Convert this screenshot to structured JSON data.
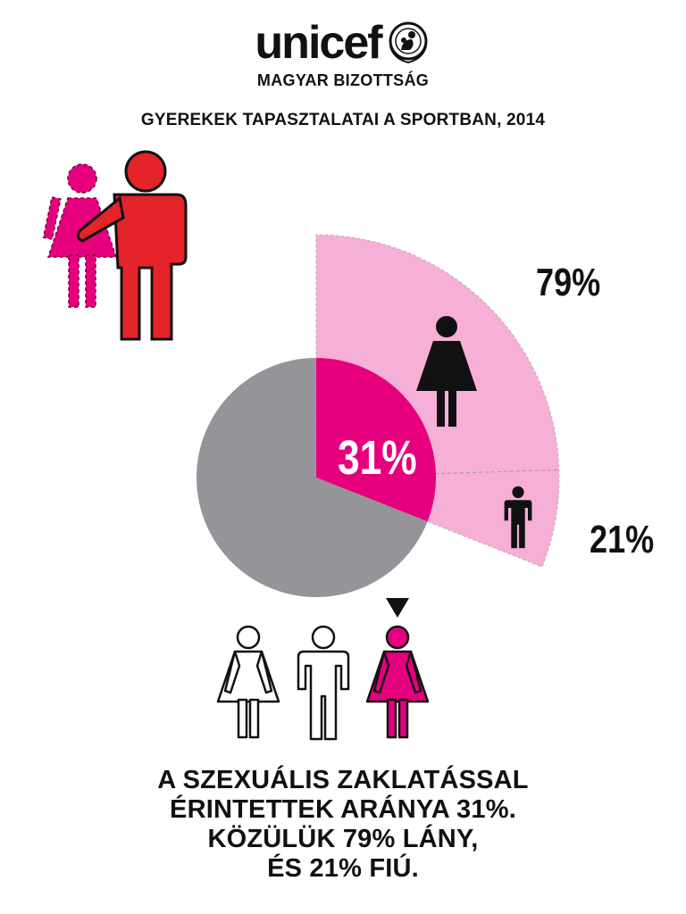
{
  "logo": {
    "word": "unicef",
    "subtitle": "MAGYAR BIZOTTSÁG"
  },
  "title": "GYEREKEK TAPASZTALATAI A SPORTBAN, 2014",
  "colors": {
    "magenta": "#e6007e",
    "light_pink": "#f6afd6",
    "gray": "#939598",
    "red": "#e4232b",
    "black": "#111111"
  },
  "chart_data": {
    "type": "pie",
    "total_share": {
      "label": "31%",
      "value": 31
    },
    "breakdown": [
      {
        "label": "79%",
        "value": 79,
        "icon": "girl-icon"
      },
      {
        "label": "21%",
        "value": 21,
        "icon": "boy-icon"
      }
    ]
  },
  "caption": {
    "lines": [
      "A SZEXUÁLIS ZAKLATÁSSAL",
      "ÉRINTETTEK ARÁNYA 31%.",
      "KÖZÜLÜK 79% LÁNY,",
      "ÉS 21% FIÚ."
    ]
  }
}
